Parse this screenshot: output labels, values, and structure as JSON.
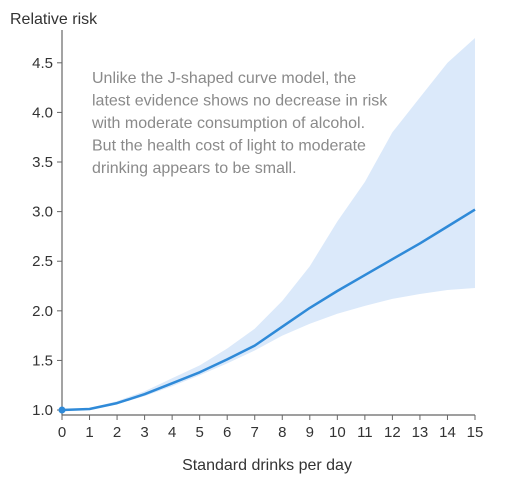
{
  "chart_data": {
    "type": "line",
    "ylabel": "Relative risk",
    "xlabel": "Standard drinks per day",
    "xlim": [
      0,
      15
    ],
    "ylim": [
      0.95,
      4.75
    ],
    "x_ticks": [
      0,
      1,
      2,
      3,
      4,
      5,
      6,
      7,
      8,
      9,
      10,
      11,
      12,
      13,
      14,
      15
    ],
    "y_ticks": [
      1.0,
      1.5,
      2.0,
      2.5,
      3.0,
      3.5,
      4.0,
      4.5
    ],
    "y_tick_labels": [
      "1.0",
      "1.5",
      "2.0",
      "2.5",
      "3.0",
      "3.5",
      "4.0",
      "4.5"
    ],
    "grid": false,
    "annotation_lines": [
      "Unlike the J-shaped curve model, the",
      "latest evidence shows no decrease in risk",
      "with moderate consumption of alcohol.",
      "But the health cost of light to moderate",
      "drinking appears to be small."
    ],
    "series": [
      {
        "x": [
          0,
          1,
          2,
          3,
          4,
          5,
          6,
          7,
          8,
          9,
          10,
          11,
          12,
          13,
          14,
          15
        ],
        "y": [
          1.0,
          1.01,
          1.07,
          1.16,
          1.27,
          1.38,
          1.51,
          1.65,
          1.84,
          2.03,
          2.2,
          2.36,
          2.52,
          2.68,
          2.85,
          3.02
        ],
        "lower": [
          1.0,
          1.01,
          1.06,
          1.14,
          1.24,
          1.35,
          1.47,
          1.6,
          1.75,
          1.87,
          1.97,
          2.05,
          2.12,
          2.17,
          2.21,
          2.23
        ],
        "upper": [
          1.0,
          1.02,
          1.09,
          1.19,
          1.32,
          1.45,
          1.62,
          1.82,
          2.1,
          2.45,
          2.9,
          3.3,
          3.8,
          4.15,
          4.5,
          4.75
        ]
      }
    ],
    "colors": {
      "line": "#2f8ad8",
      "band": "#dbe9fa",
      "axis": "#666666"
    }
  }
}
